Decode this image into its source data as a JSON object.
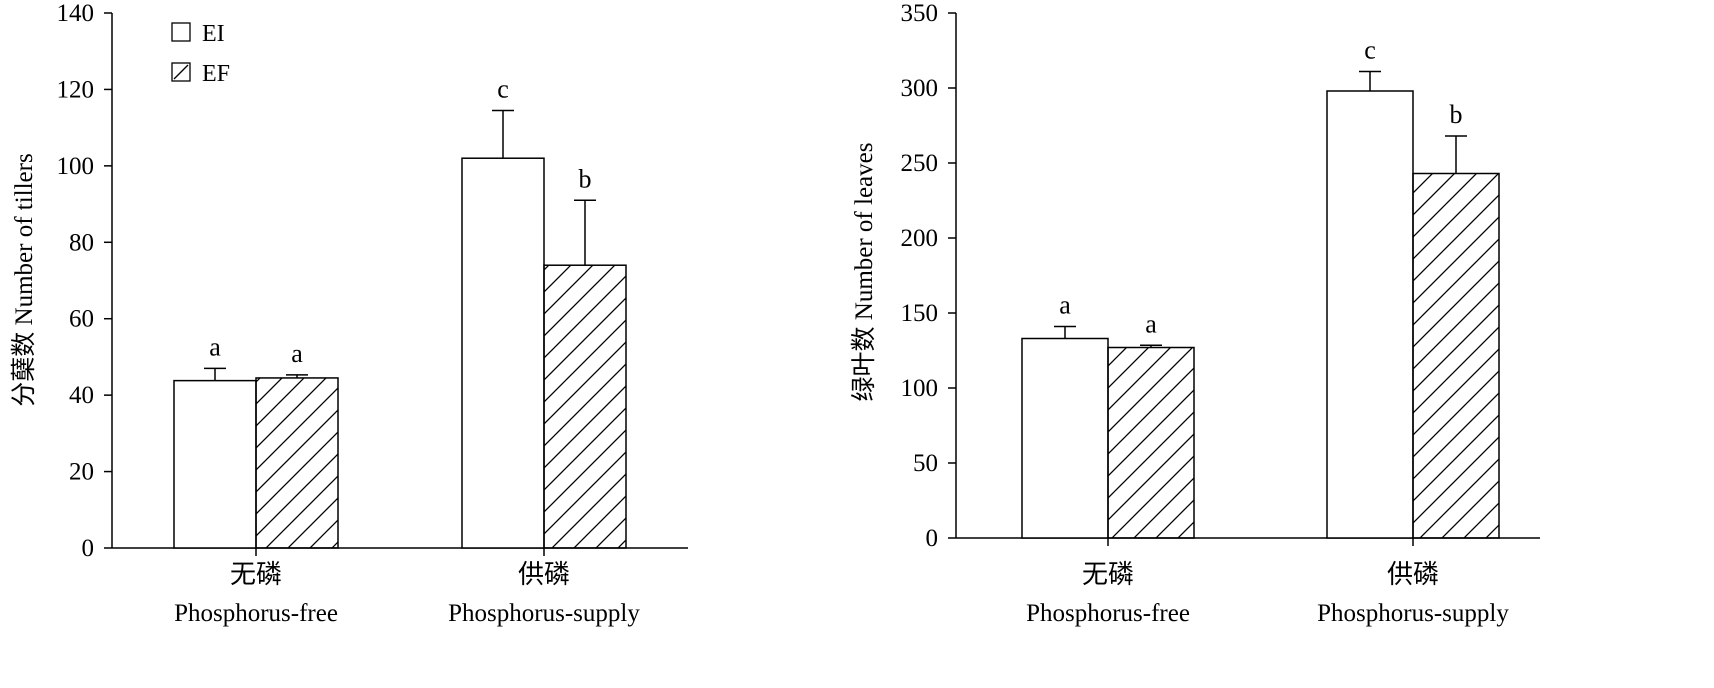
{
  "chart_data": [
    {
      "type": "bar",
      "ylabel": "分蘖数 Number of tillers",
      "ylim": [
        0,
        140
      ],
      "yticks": [
        0,
        20,
        40,
        60,
        80,
        100,
        120,
        140
      ],
      "categories": [
        {
          "zh": "无磷",
          "en": "Phosphorus-free"
        },
        {
          "zh": "供磷",
          "en": "Phosphorus-supply"
        }
      ],
      "series": [
        {
          "name": "EI",
          "pattern": "open",
          "values": [
            43.8,
            102
          ],
          "errors": [
            3.2,
            12.5
          ],
          "letters": [
            "a",
            "c"
          ]
        },
        {
          "name": "EF",
          "pattern": "hatched",
          "values": [
            44.5,
            74
          ],
          "errors": [
            0.8,
            17
          ],
          "letters": [
            "a",
            "b"
          ]
        }
      ],
      "legend": "top-left",
      "grid": false
    },
    {
      "type": "bar",
      "ylabel": "绿叶数 Number of leaves",
      "ylim": [
        0,
        350
      ],
      "yticks": [
        0,
        50,
        100,
        150,
        200,
        250,
        300,
        350
      ],
      "categories": [
        {
          "zh": "无磷",
          "en": "Phosphorus-free"
        },
        {
          "zh": "供磷",
          "en": "Phosphorus-supply"
        }
      ],
      "series": [
        {
          "name": "EI",
          "pattern": "open",
          "values": [
            133,
            298
          ],
          "errors": [
            8,
            13
          ],
          "letters": [
            "a",
            "c"
          ]
        },
        {
          "name": "EF",
          "pattern": "hatched",
          "values": [
            127,
            243
          ],
          "errors": [
            1.5,
            25
          ],
          "letters": [
            "a",
            "b"
          ]
        }
      ],
      "grid": false
    }
  ]
}
